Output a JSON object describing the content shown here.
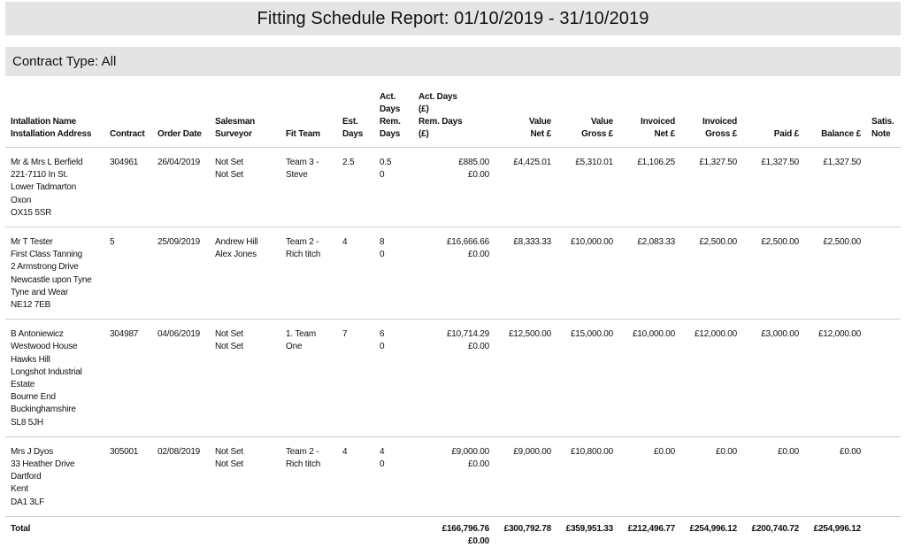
{
  "report": {
    "title": "Fitting Schedule Report: 01/10/2019 - 31/10/2019",
    "contract_type": "Contract Type: All"
  },
  "columns": {
    "installation": "Intallation Name\nInstallation Address",
    "contract": "Contract",
    "order_date": "Order Date",
    "salesman": "Salesman\nSurveyor",
    "fit_team": "Fit Team",
    "est_days": "Est.\nDays",
    "act_days": "Act.\nDays\nRem.\nDays",
    "act_value": "Act. Days\n(£)\nRem. Days\n(£)",
    "value_net": "Value\nNet £",
    "value_gross": "Value\nGross £",
    "invoiced_net": "Invoiced\nNet £",
    "invoiced_gross": "Invoiced\nGross £",
    "paid": "Paid £",
    "balance": "Balance £",
    "satis": "Satis.\nNote"
  },
  "rows": [
    {
      "installation": "Mr & Mrs L Berfield\n221-7110 In St.\nLower Tadmarton\nOxon\nOX15 5SR",
      "contract": "304961",
      "order_date": "26/04/2019",
      "salesman": "Not Set\nNot Set",
      "fit_team": "Team 3 -\nSteve",
      "est_days": "2.5",
      "act_days": "0.5\n0",
      "act_value": "£885.00\n£0.00",
      "value_net": "£4,425.01",
      "value_gross": "£5,310.01",
      "invoiced_net": "£1,106.25",
      "invoiced_gross": "£1,327.50",
      "paid": "£1,327.50",
      "balance": "£1,327.50",
      "satis": ""
    },
    {
      "installation": "Mr T Tester\nFirst Class Tanning\n2 Armstrong Drive\nNewcastle upon Tyne\nTyne and Wear\nNE12 7EB",
      "contract": "5",
      "order_date": "25/09/2019",
      "salesman": "Andrew Hill\nAlex Jones",
      "fit_team": "Team 2 -\nRich titch",
      "est_days": "4",
      "act_days": "8\n0",
      "act_value": "£16,666.66\n£0.00",
      "value_net": "£8,333.33",
      "value_gross": "£10,000.00",
      "invoiced_net": "£2,083.33",
      "invoiced_gross": "£2,500.00",
      "paid": "£2,500.00",
      "balance": "£2,500.00",
      "satis": ""
    },
    {
      "installation": "B Antoniewicz\nWestwood House\nHawks Hill\nLongshot Industrial\nEstate\nBourne End\nBuckinghamshire\nSL8 5JH",
      "contract": "304987",
      "order_date": "04/06/2019",
      "salesman": "Not Set\nNot Set",
      "fit_team": "1. Team\nOne",
      "est_days": "7",
      "act_days": "6\n0",
      "act_value": "£10,714.29\n£0.00",
      "value_net": "£12,500.00",
      "value_gross": "£15,000.00",
      "invoiced_net": "£10,000.00",
      "invoiced_gross": "£12,000.00",
      "paid": "£3,000.00",
      "balance": "£12,000.00",
      "satis": ""
    },
    {
      "installation": "Mrs J Dyos\n33 Heather Drive\nDartford\nKent\nDA1 3LF",
      "contract": "305001",
      "order_date": "02/08/2019",
      "salesman": "Not Set\nNot Set",
      "fit_team": "Team 2 -\nRich titch",
      "est_days": "4",
      "act_days": "4\n0",
      "act_value": "£9,000.00\n£0.00",
      "value_net": "£9,000.00",
      "value_gross": "£10,800.00",
      "invoiced_net": "£0.00",
      "invoiced_gross": "£0.00",
      "paid": "£0.00",
      "balance": "£0.00",
      "satis": ""
    }
  ],
  "totals": {
    "label": "Total",
    "act_value": "£166,796.76\n£0.00",
    "value_net": "£300,792.78",
    "value_gross": "£359,951.33",
    "invoiced_net": "£212,496.77",
    "invoiced_gross": "£254,996.12",
    "paid": "£200,740.72",
    "balance": "£254,996.12"
  }
}
